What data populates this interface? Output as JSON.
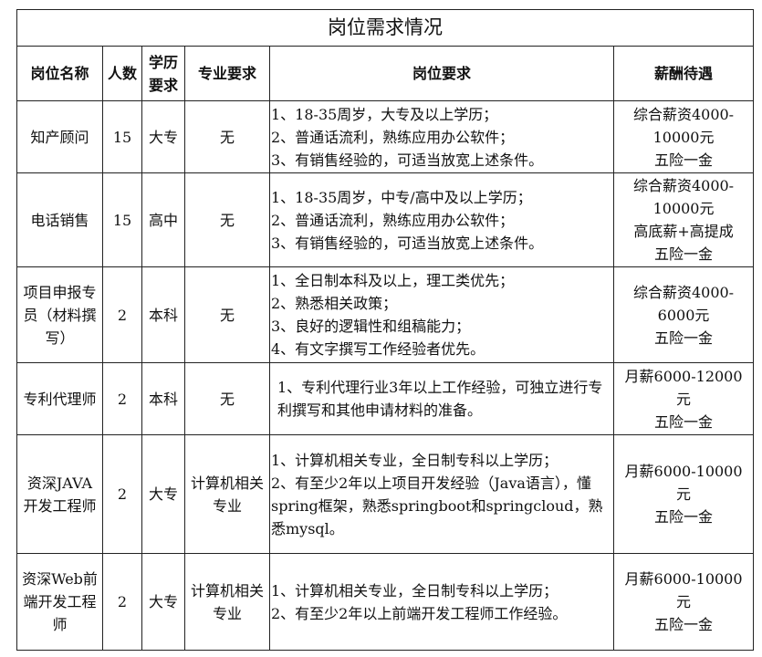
{
  "title": "岗位需求情况",
  "headers": [
    "岗位名称",
    "人数",
    "学历要求",
    "专业要求",
    "岗位要求",
    "薪酬待遇"
  ],
  "rows": [
    {
      "name": "知产顾问",
      "count": "15",
      "education": "大专",
      "major": "无",
      "requirements": [
        "1、18-35周岁，大专及以上学历；",
        "2、普通话流利，熟练应用办公软件；",
        "3、有销售经验的，可适当放宽上述条件。"
      ],
      "salary": [
        "综合薪资4000-10000元",
        "五险一金"
      ]
    },
    {
      "name": "电话销售",
      "count": "15",
      "education": "高中",
      "major": "无",
      "requirements": [
        "1、18-35周岁，中专/高中及以上学历；",
        "2、普通话流利，熟练应用办公软件；",
        "3、有销售经验的，可适当放宽上述条件。"
      ],
      "salary": [
        "综合薪资4000-10000元",
        "高底薪+高提成",
        "五险一金"
      ]
    },
    {
      "name": "项目申报专员（材料撰写）",
      "count": "2",
      "education": "本科",
      "major": "无",
      "requirements": [
        "1、全日制本科及以上，理工类优先；",
        "2、熟悉相关政策；",
        "3、良好的逻辑性和组稿能力；",
        "4、有文字撰写工作经验者优先。"
      ],
      "salary": [
        "综合薪资4000-6000元",
        "五险一金"
      ]
    },
    {
      "name": "专利代理师",
      "count": "2",
      "education": "本科",
      "major": "无",
      "requirements": [
        "1、专利代理行业3年以上工作经验，可独立进行专利撰写和其他申请材料的准备。"
      ],
      "salary": [
        "月薪6000-12000元",
        "五险一金"
      ]
    },
    {
      "name": "资深JAVA开发工程师",
      "count": "2",
      "education": "大专",
      "major": "计算机相关专业",
      "requirements": [
        "1、计算机相关专业，全日制专科以上学历；",
        "2、有至少2年以上项目开发经验（Java语言），懂spring框架，熟悉springboot和springcloud，熟悉mysql。"
      ],
      "salary": [
        "月薪6000-10000元",
        "五险一金"
      ]
    },
    {
      "name": "资深Web前端开发工程师",
      "count": "2",
      "education": "大专",
      "major": "计算机相关专业",
      "requirements": [
        "1、计算机相关专业，全日制专科以上学历；",
        "2、有至少2年以上前端开发工程师工作经验。"
      ],
      "salary": [
        "月薪6000-10000元",
        "五险一金"
      ]
    }
  ]
}
